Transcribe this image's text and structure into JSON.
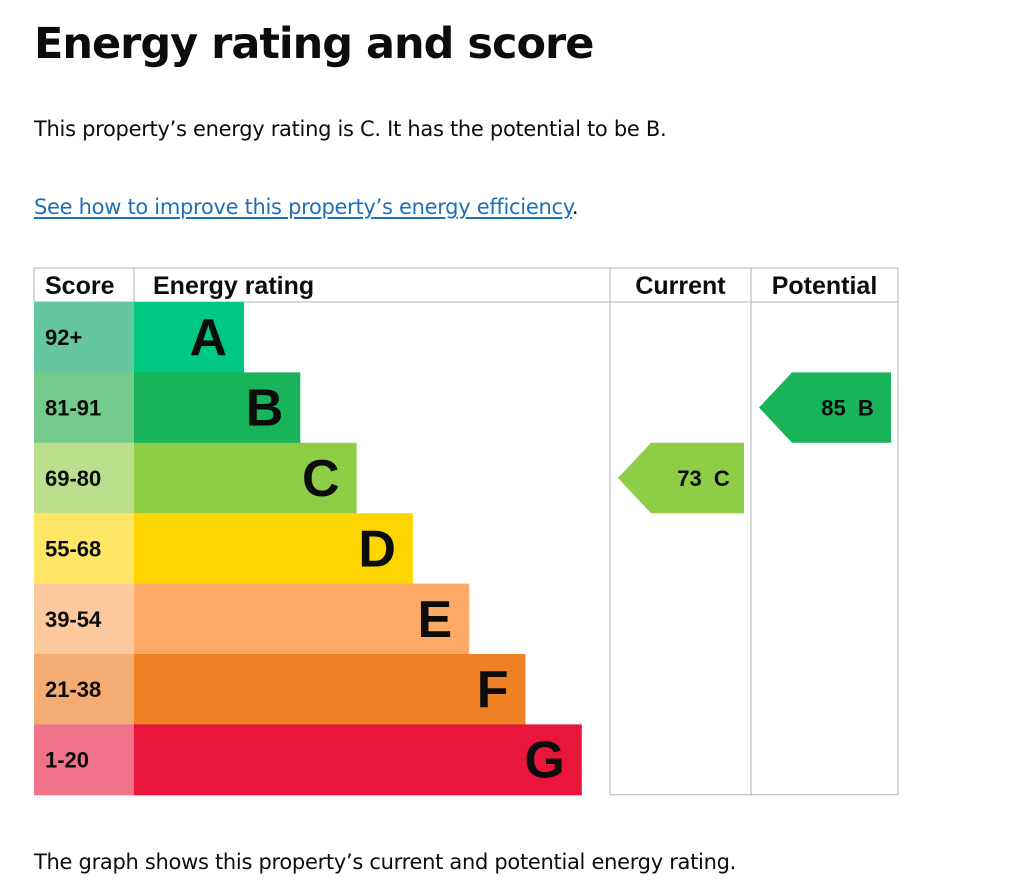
{
  "heading": "Energy rating and score",
  "summary": "This property’s energy rating is C. It has the potential to be B.",
  "improve_link": "See how to improve this property’s energy efficiency",
  "improve_suffix": ".",
  "footer_text": "The graph shows this property’s current and potential energy rating.",
  "chart_data": {
    "type": "bar",
    "columns": [
      "Score",
      "Energy rating",
      "Current",
      "Potential"
    ],
    "bands": [
      {
        "letter": "A",
        "score": "92+",
        "color": "#00c781",
        "score_bg": "#64c7a2",
        "value": 1
      },
      {
        "letter": "B",
        "score": "81-91",
        "color": "#19b459",
        "score_bg": "#74cb8b",
        "value": 2
      },
      {
        "letter": "C",
        "score": "69-80",
        "color": "#8dce46",
        "score_bg": "#bae08d",
        "value": 3
      },
      {
        "letter": "D",
        "score": "55-68",
        "color": "#ffd500",
        "score_bg": "#ffe566",
        "value": 4
      },
      {
        "letter": "E",
        "score": "39-54",
        "color": "#fcaa65",
        "score_bg": "#fdc99e",
        "value": 5
      },
      {
        "letter": "F",
        "score": "21-38",
        "color": "#ef8023",
        "score_bg": "#f4ac72",
        "value": 6
      },
      {
        "letter": "G",
        "score": "1-20",
        "color": "#e9153b",
        "score_bg": "#f17389",
        "value": 7
      }
    ],
    "current": {
      "score": 73,
      "rating": "C",
      "color": "#8dce46"
    },
    "potential": {
      "score": 85,
      "rating": "B",
      "color": "#19b459"
    }
  }
}
